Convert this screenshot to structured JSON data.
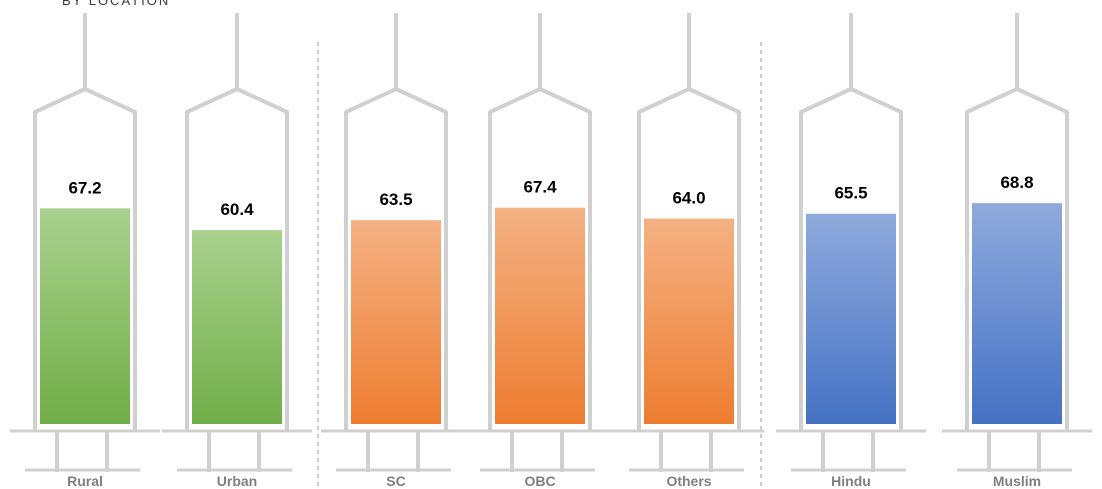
{
  "top_text": "BY LOCATION",
  "colors": {
    "green": [
      "#a9d18e",
      "#70ad47"
    ],
    "orange": [
      "#f4b183",
      "#ed7d31"
    ],
    "blue": [
      "#8faadc",
      "#4472c4"
    ],
    "outline": "#d0d0d0",
    "divider": "#9a9a9a"
  },
  "chart_data": {
    "type": "bar",
    "title": "",
    "categories": [
      "Rural",
      "Urban",
      "SC",
      "OBC",
      "Others",
      "Hindu",
      "Muslim"
    ],
    "values": [
      67.2,
      60.4,
      63.5,
      67.4,
      64.0,
      65.5,
      68.8
    ],
    "value_labels": [
      "67.2",
      "60.4",
      "63.5",
      "67.4",
      "64.0",
      "65.5",
      "68.8"
    ],
    "groups": [
      {
        "color": "green",
        "categories": [
          "Rural",
          "Urban"
        ]
      },
      {
        "color": "orange",
        "categories": [
          "SC",
          "OBC",
          "Others"
        ]
      },
      {
        "color": "blue",
        "categories": [
          "Hindu",
          "Muslim"
        ]
      }
    ],
    "ylim": [
      0,
      100
    ],
    "grid": false,
    "legend": "none"
  }
}
